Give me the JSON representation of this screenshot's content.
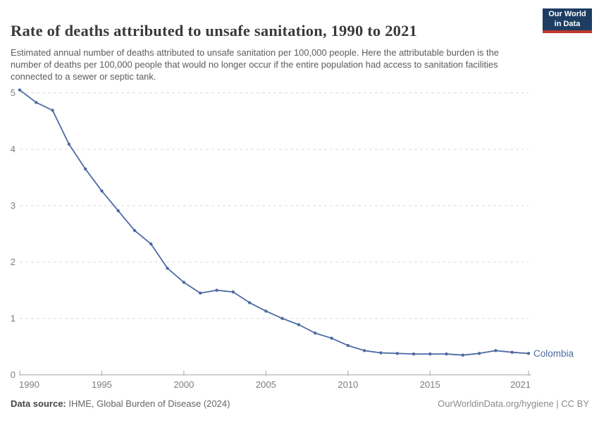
{
  "chart_data": {
    "type": "line",
    "title": "Rate of deaths attributed to unsafe sanitation, 1990 to 2021",
    "subtitle": "Estimated annual number of deaths attributed to unsafe sanitation per 100,000 people. Here the attributable burden is the number of deaths per 100,000 people that would no longer occur if the entire population had access to sanitation facilities connected to a sewer or septic tank.",
    "x": [
      1990,
      1991,
      1992,
      1993,
      1994,
      1995,
      1996,
      1997,
      1998,
      1999,
      2000,
      2001,
      2002,
      2003,
      2004,
      2005,
      2006,
      2007,
      2008,
      2009,
      2010,
      2011,
      2012,
      2013,
      2014,
      2015,
      2016,
      2017,
      2018,
      2019,
      2020,
      2021
    ],
    "series": [
      {
        "name": "Colombia",
        "color": "#4c6ba2",
        "values": [
          5.05,
          4.83,
          4.69,
          4.09,
          3.65,
          3.26,
          2.91,
          2.56,
          2.32,
          1.89,
          1.64,
          1.45,
          1.5,
          1.47,
          1.28,
          1.13,
          1.0,
          0.89,
          0.74,
          0.65,
          0.52,
          0.43,
          0.39,
          0.38,
          0.37,
          0.37,
          0.37,
          0.35,
          0.38,
          0.43,
          0.4,
          0.38
        ]
      }
    ],
    "xlabel": "",
    "ylabel": "",
    "xlim": [
      1990,
      2021
    ],
    "ylim": [
      0,
      5.1
    ],
    "x_ticks": [
      1990,
      1995,
      2000,
      2005,
      2010,
      2015,
      2021
    ],
    "y_ticks": [
      0,
      1,
      2,
      3,
      4,
      5
    ],
    "grid": "horizontal-dashed",
    "legend_position": "end-of-line-label",
    "end_label": "Colombia"
  },
  "header": {
    "logo": {
      "line1": "Our World",
      "line2": "in Data",
      "bg_color": "#1d3d63",
      "accent_color": "#c0392b"
    }
  },
  "footer": {
    "source_label": "Data source:",
    "source_text": " IHME, Global Burden of Disease (2024)",
    "credit": "OurWorldinData.org/hygiene | CC BY"
  },
  "colors": {
    "line": "#4c6ba2",
    "grid": "#dcdcdc",
    "axis": "#a3a3a3",
    "tick_label": "#7c7c7c",
    "title": "#3a3a3a",
    "subtitle": "#5c5c5c"
  }
}
